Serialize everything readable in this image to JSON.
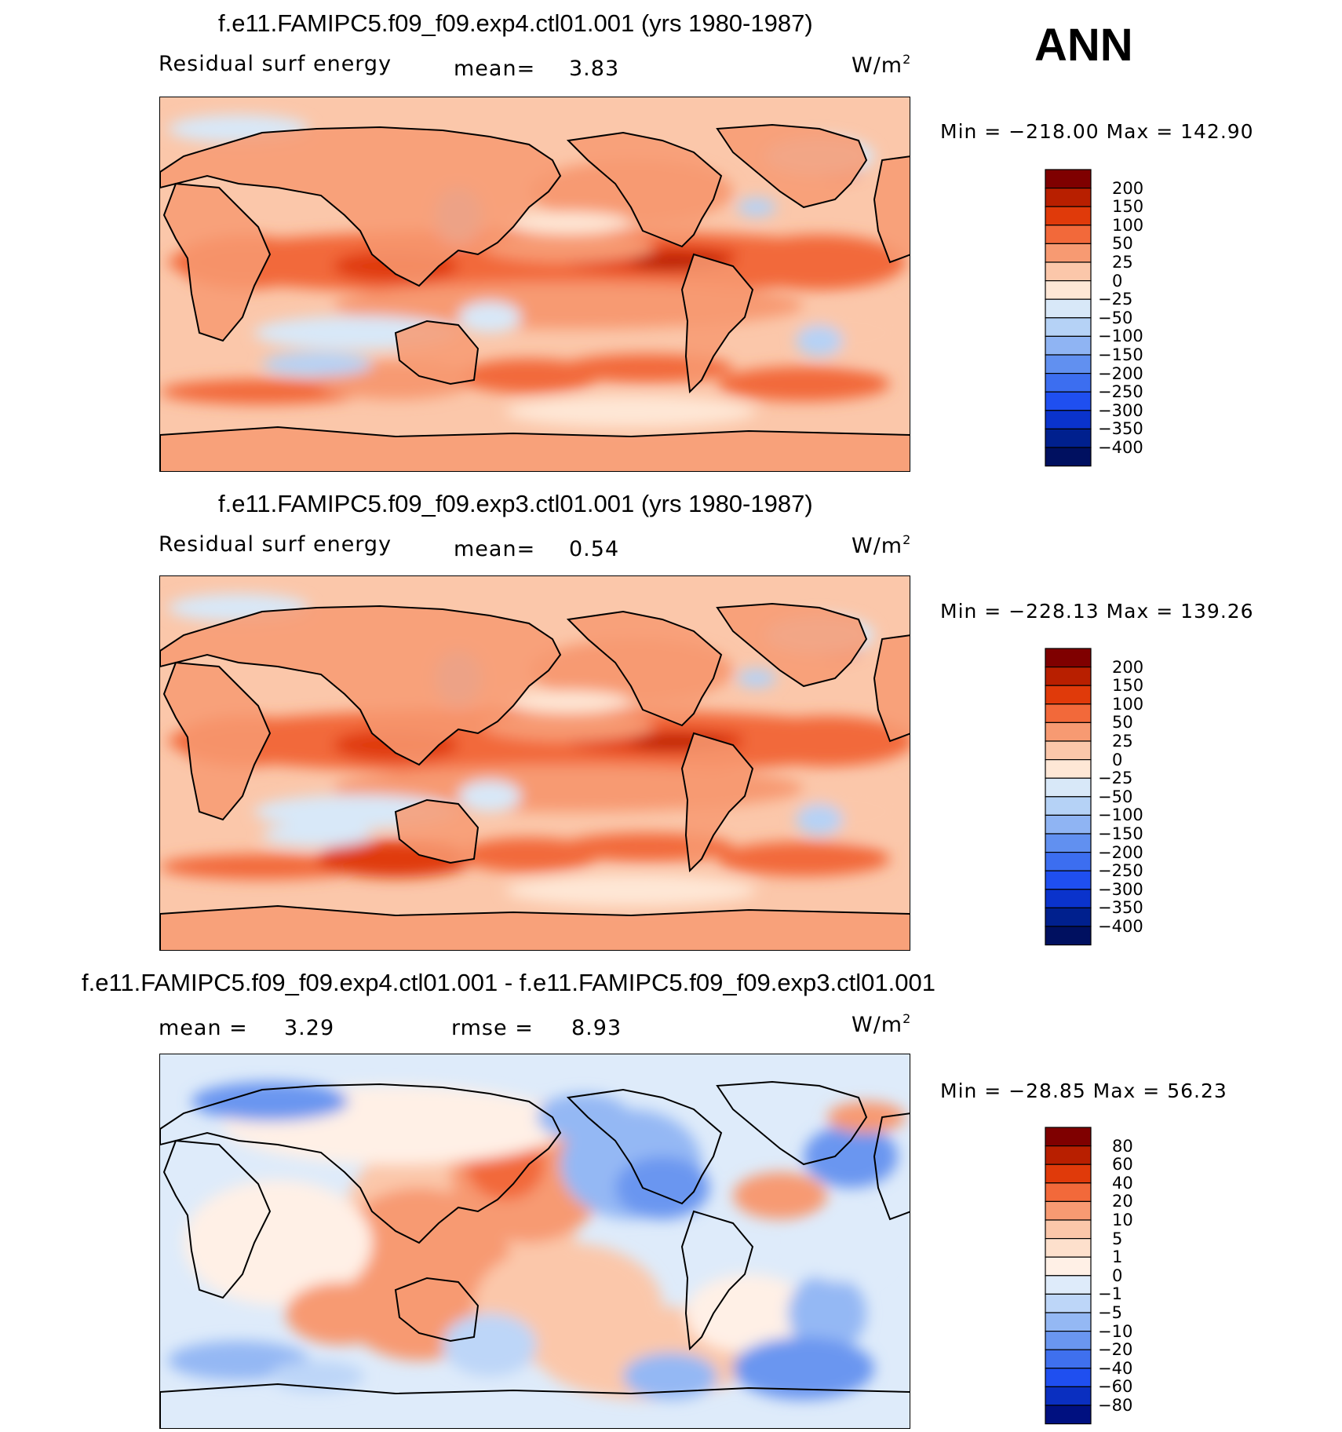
{
  "season": "ANN",
  "units_base": "W/m",
  "units_exp": "2",
  "chart_data": [
    {
      "type": "heatmap",
      "title": "f.e11.FAMIPC5.f09_f09.exp4.ctl01.001 (yrs 1980-1987)",
      "variable": "Residual surf energy",
      "mean_label": "mean=",
      "mean": "3.83",
      "min_max": "Min = −218.00 Max = 142.90",
      "colorbar_levels": [
        "200",
        "150",
        "100",
        "50",
        "25",
        "0",
        "−25",
        "−50",
        "−100",
        "−150",
        "−200",
        "−250",
        "−300",
        "−350",
        "−400"
      ],
      "colorbar_colors": [
        "#7f0000",
        "#b81f00",
        "#e03a0a",
        "#f2693a",
        "#f79a72",
        "#fbc7aa",
        "#fee7d6",
        "#d8e8f8",
        "#b5d2f6",
        "#8fb4f3",
        "#6190f0",
        "#3c6ef0",
        "#1f4ff0",
        "#0a33cc",
        "#00208e",
        "#001060"
      ]
    },
    {
      "type": "heatmap",
      "title": "f.e11.FAMIPC5.f09_f09.exp3.ctl01.001 (yrs 1980-1987)",
      "variable": "Residual surf energy",
      "mean_label": "mean=",
      "mean": "0.54",
      "min_max": "Min = −228.13 Max = 139.26",
      "colorbar_levels": [
        "200",
        "150",
        "100",
        "50",
        "25",
        "0",
        "−25",
        "−50",
        "−100",
        "−150",
        "−200",
        "−250",
        "−300",
        "−350",
        "−400"
      ],
      "colorbar_colors": [
        "#7f0000",
        "#b81f00",
        "#e03a0a",
        "#f2693a",
        "#f79a72",
        "#fbc7aa",
        "#fee7d6",
        "#d8e8f8",
        "#b5d2f6",
        "#8fb4f3",
        "#6190f0",
        "#3c6ef0",
        "#1f4ff0",
        "#0a33cc",
        "#00208e",
        "#001060"
      ]
    },
    {
      "type": "heatmap",
      "title": "f.e11.FAMIPC5.f09_f09.exp4.ctl01.001 - f.e11.FAMIPC5.f09_f09.exp3.ctl01.001",
      "mean_label": "mean =",
      "mean": "3.29",
      "rmse_label": "rmse =",
      "rmse": "8.93",
      "min_max": "Min = −28.85 Max =   56.23",
      "colorbar_levels": [
        "80",
        "60",
        "40",
        "20",
        "10",
        "5",
        "1",
        "0",
        "−1",
        "−5",
        "−10",
        "−20",
        "−40",
        "−60",
        "−80"
      ],
      "colorbar_colors": [
        "#7f0000",
        "#b81f00",
        "#e03a0a",
        "#f2693a",
        "#f79a72",
        "#fbc7aa",
        "#fde0cc",
        "#fff0e6",
        "#deebfa",
        "#bdd6f8",
        "#94b8f4",
        "#6a96f0",
        "#3f70ee",
        "#1f4ff0",
        "#0a2fc0",
        "#001080"
      ]
    }
  ]
}
